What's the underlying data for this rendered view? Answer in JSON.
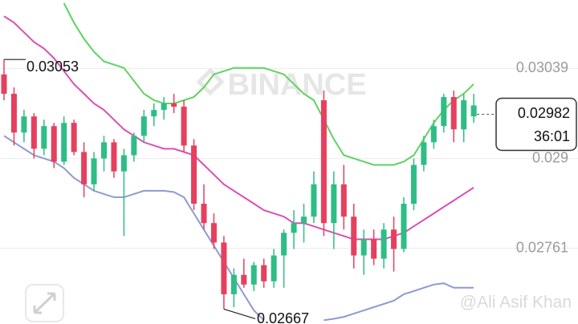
{
  "chart_data": {
    "type": "candlestick",
    "watermark": "BINANCE",
    "credit": "@Ali Asif Khan",
    "countdown": "36:01",
    "ylim": [
      0.02644,
      0.03145
    ],
    "yticks": [
      0.03039,
      0.029,
      0.02761
    ],
    "grid": true,
    "up_color": "#2ebd85",
    "down_color": "#e5405e",
    "open": [
      0.0303,
      0.03,
      0.0294,
      0.02965,
      0.02915,
      0.0295,
      0.02895,
      0.02955,
      0.0291,
      0.0286,
      0.029,
      0.02925,
      0.0288,
      0.02905,
      0.02935,
      0.02965,
      0.02975,
      0.02985,
      0.0298,
      0.0292,
      0.0283,
      0.028,
      0.0277,
      0.0269,
      0.0272,
      0.02705,
      0.02735,
      0.0271,
      0.0275,
      0.02785,
      0.028,
      0.0281,
      0.0299,
      0.028,
      0.0286,
      0.0281,
      0.0275,
      0.02775,
      0.02745,
      0.0279,
      0.0276,
      0.0283,
      0.0289,
      0.02925,
      0.0295,
      0.02995,
      0.02945,
      0.02965
    ],
    "high": [
      0.03053,
      0.0301,
      0.02975,
      0.0297,
      0.0296,
      0.02955,
      0.02965,
      0.0296,
      0.02925,
      0.0291,
      0.02935,
      0.0293,
      0.02915,
      0.0294,
      0.02975,
      0.02985,
      0.02995,
      0.03,
      0.0299,
      0.0293,
      0.0286,
      0.02815,
      0.0278,
      0.0273,
      0.02745,
      0.0274,
      0.02745,
      0.0276,
      0.0279,
      0.0282,
      0.0283,
      0.0288,
      0.03005,
      0.0288,
      0.0289,
      0.0283,
      0.0279,
      0.0279,
      0.028,
      0.0281,
      0.0284,
      0.029,
      0.02935,
      0.0296,
      0.03,
      0.03005,
      0.03,
      0.03
    ],
    "low": [
      0.0299,
      0.0292,
      0.02925,
      0.029,
      0.02905,
      0.02885,
      0.0289,
      0.02905,
      0.0284,
      0.0285,
      0.0288,
      0.0287,
      0.0278,
      0.02895,
      0.02925,
      0.0295,
      0.0296,
      0.0297,
      0.0291,
      0.0282,
      0.0279,
      0.0276,
      0.02667,
      0.0267,
      0.027,
      0.02695,
      0.027,
      0.027,
      0.027,
      0.0276,
      0.0277,
      0.028,
      0.0278,
      0.0276,
      0.0279,
      0.0273,
      0.0272,
      0.02735,
      0.0273,
      0.02725,
      0.02755,
      0.0282,
      0.0288,
      0.02915,
      0.0294,
      0.02925,
      0.02925,
      0.02955
    ],
    "close": [
      0.03,
      0.0294,
      0.02965,
      0.02915,
      0.0295,
      0.02895,
      0.02955,
      0.0291,
      0.0286,
      0.029,
      0.02925,
      0.0288,
      0.02905,
      0.02935,
      0.02965,
      0.02975,
      0.02985,
      0.0298,
      0.0292,
      0.0283,
      0.028,
      0.0277,
      0.0269,
      0.0272,
      0.02705,
      0.02735,
      0.0271,
      0.0275,
      0.02785,
      0.028,
      0.0281,
      0.0286,
      0.028,
      0.0286,
      0.0281,
      0.0275,
      0.02775,
      0.02745,
      0.0279,
      0.0276,
      0.0283,
      0.0289,
      0.02925,
      0.0295,
      0.02995,
      0.02945,
      0.0299,
      0.02982
    ],
    "series": [
      {
        "color": "#5fd35f",
        "values": [
          null,
          null,
          null,
          null,
          null,
          null,
          0.0314,
          0.0311,
          0.03085,
          0.03065,
          0.0305,
          0.03045,
          0.0304,
          0.0302,
          0.03,
          0.0299,
          0.02985,
          0.02985,
          0.0299,
          0.02995,
          0.0301,
          0.0303,
          0.03035,
          0.0304,
          0.0304,
          0.0304,
          0.0304,
          0.03035,
          0.0303,
          0.03015,
          0.03,
          0.0299,
          0.0296,
          0.0293,
          0.02905,
          0.029,
          0.02895,
          0.0289,
          0.0289,
          0.0289,
          0.02895,
          0.02905,
          0.0293,
          0.02955,
          0.02975,
          0.0299,
          0.03,
          0.03015
        ]
      },
      {
        "color": "#d94fb5",
        "values": [
          0.0312,
          0.0311,
          0.03095,
          0.0308,
          0.0307,
          0.03055,
          0.03035,
          0.03015,
          0.03,
          0.02985,
          0.02975,
          0.0296,
          0.02945,
          0.02935,
          0.02925,
          0.0292,
          0.02915,
          0.02915,
          0.0291,
          0.02905,
          0.0289,
          0.02875,
          0.0286,
          0.0285,
          0.0284,
          0.0283,
          0.0282,
          0.02815,
          0.0281,
          0.028,
          0.028,
          0.02795,
          0.0279,
          0.02785,
          0.0278,
          0.02775,
          0.02775,
          0.02775,
          0.02775,
          0.0278,
          0.02785,
          0.02795,
          0.02805,
          0.02815,
          0.02825,
          0.02835,
          0.02845,
          0.02855
        ]
      },
      {
        "color": "#8e9ad0",
        "values": [
          0.02935,
          0.02925,
          0.02915,
          0.02905,
          0.029,
          0.02895,
          0.02885,
          0.0287,
          0.0286,
          0.0285,
          0.02845,
          0.0284,
          0.0284,
          0.02845,
          0.0285,
          0.0285,
          0.0285,
          0.02848,
          0.0284,
          0.02815,
          0.0279,
          0.02765,
          0.0274,
          0.02715,
          0.0269,
          0.02665,
          0.0265,
          null,
          null,
          null,
          null,
          null,
          0.0265,
          0.02652,
          0.02655,
          0.0266,
          0.02665,
          0.0267,
          0.02675,
          0.0268,
          0.0269,
          0.02695,
          0.027,
          0.02705,
          0.02707,
          0.027,
          0.027,
          0.027
        ]
      }
    ]
  }
}
